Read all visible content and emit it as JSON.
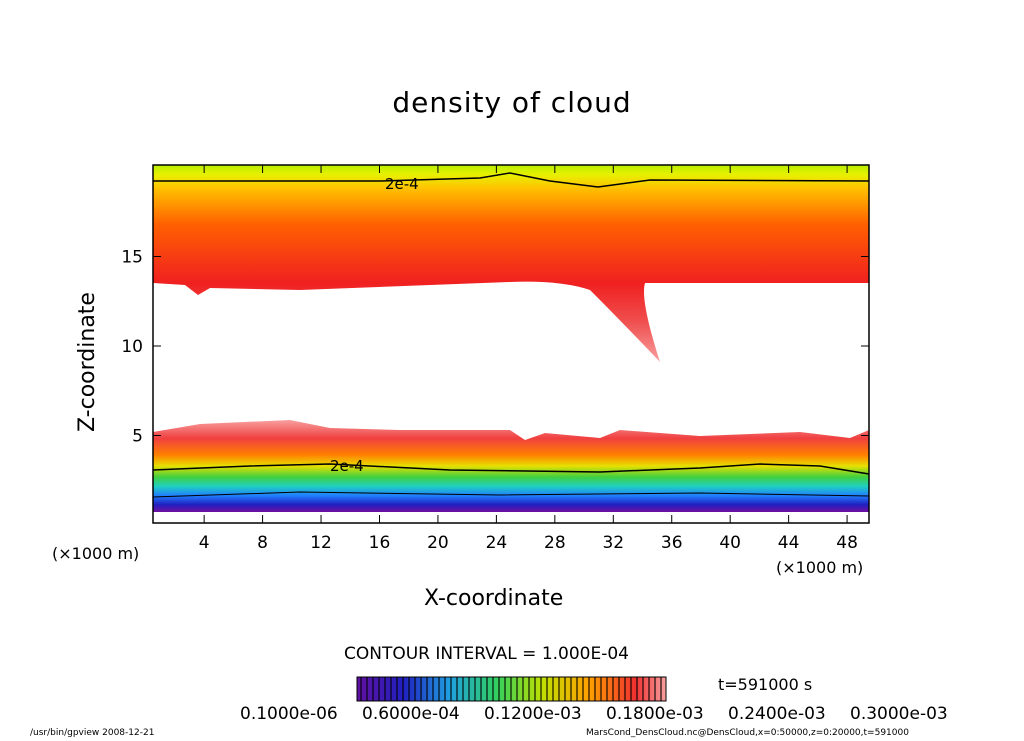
{
  "chart_data": {
    "type": "heatmap",
    "title": "density of cloud",
    "xlabel": "X-coordinate",
    "ylabel": "Z-coordinate",
    "x_unit_left": "(×1000 m)",
    "x_unit_right": "(×1000 m)",
    "xlim": [
      0,
      50
    ],
    "ylim": [
      0,
      20
    ],
    "xticks": [
      "4",
      "8",
      "12",
      "16",
      "20",
      "24",
      "28",
      "32",
      "36",
      "40",
      "44",
      "48"
    ],
    "xtick_values": [
      4,
      8,
      12,
      16,
      20,
      24,
      28,
      32,
      36,
      40,
      44,
      48
    ],
    "yticks": [
      "5",
      "10",
      "15"
    ],
    "ytick_values": [
      5,
      10,
      15
    ],
    "contour_labels": [
      "2e-4",
      "2e-4"
    ],
    "contour_interval": "CONTOUR INTERVAL = 1.000E-04",
    "colorbar_labels": [
      "0.1000e-06",
      "0.6000e-04",
      "0.1200e-03",
      "0.1800e-03",
      "0.2400e-03",
      "0.3000e-03"
    ],
    "time_label": "t=591000 s"
  },
  "footer": {
    "left": "/usr/bin/gpview   2008-12-21",
    "right": "MarsCond_DensCloud.nc@DensCloud,x=0:50000,z=0:20000,t=591000"
  }
}
